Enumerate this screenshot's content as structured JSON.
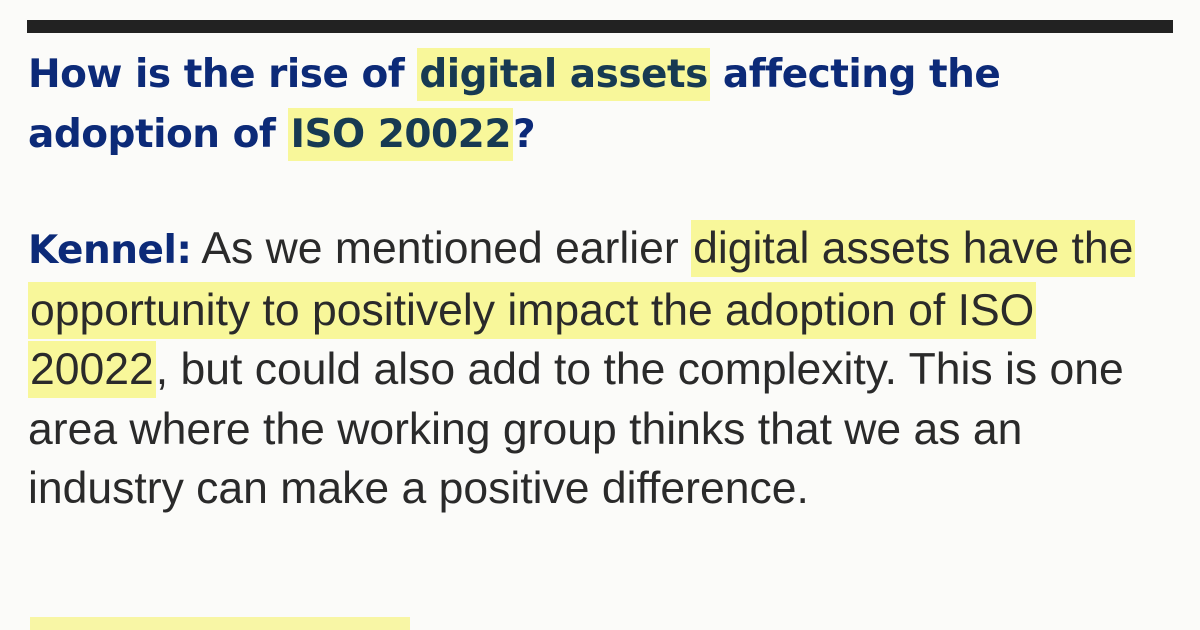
{
  "question": {
    "pre": "How is the rise of ",
    "highlight1": "digital assets",
    "mid": " affecting the adoption of ",
    "highlight2": "ISO 20022",
    "end": "?"
  },
  "answer": {
    "speaker": "Kennel:",
    "pre": " As we mentioned earlier ",
    "highlight": "digital assets have the opportunity to positively impact the adoption of ISO 20022",
    "post": ", but could also add to the complexity. This is one area where the working group thinks that we as an industry can make a positive difference."
  },
  "colors": {
    "heading": "#0c2a78",
    "body": "#2a2a2a",
    "highlight": "#f6f360",
    "rule": "#222222"
  }
}
